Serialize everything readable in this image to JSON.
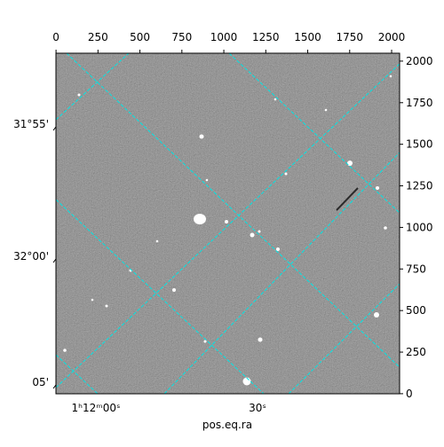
{
  "chart_data": {
    "type": "image",
    "xlabel": "pos.eq.ra",
    "xlim": [
      -0.5,
      2047.5
    ],
    "ylim": [
      -0.5,
      2047.5
    ],
    "xticks": [
      0,
      250,
      500,
      750,
      1000,
      1250,
      1500,
      1750,
      2000
    ],
    "yticks": [
      0,
      250,
      500,
      750,
      1000,
      1250,
      1500,
      1750,
      2000
    ],
    "ra_ticks": [
      "1ʰ12ᵐ00ˢ",
      "30ˢ"
    ],
    "dec_ticks": [
      "31°55'",
      "32°00'",
      "05'"
    ],
    "grid_color": "#00e5e5"
  }
}
